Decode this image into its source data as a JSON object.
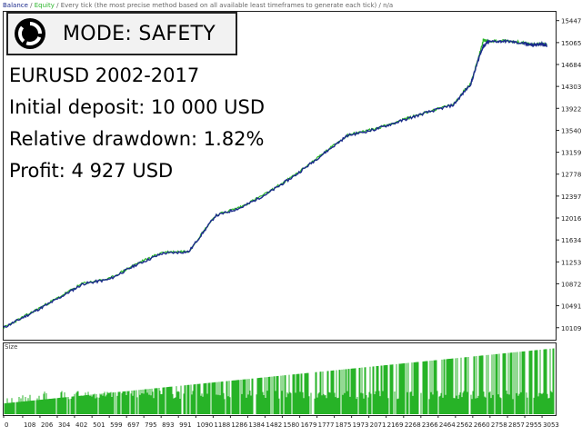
{
  "header": {
    "balance_label": "Balance",
    "equity_label": "Equity",
    "description": "Every tick (the most precise method based on all available least timeframes to generate each tick)",
    "suffix": "n/a"
  },
  "mode": {
    "text": "MODE: SAFETY",
    "icon": "circular-logo-icon"
  },
  "stats": {
    "pair_period": "EURUSD 2002-2017",
    "initial_deposit": "Initial deposit: 10 000 USD",
    "drawdown": "Relative drawdown: 1.82%",
    "profit": "Profit: 4 927 USD"
  },
  "colors": {
    "balance": "#1b2a8c",
    "equity": "#2ab52a",
    "size_bars": "#27b327",
    "axis": "#222222",
    "background": "#ffffff"
  },
  "size_panel": {
    "label": "Size"
  },
  "chart_data": {
    "type": "line",
    "title": "",
    "xlabel": "",
    "ylabel": "",
    "series": [
      {
        "name": "Balance",
        "x": [
          0,
          150,
          300,
          450,
          600,
          750,
          900,
          1050,
          1200,
          1350,
          1500,
          1650,
          1800,
          1950,
          2100,
          2250,
          2400,
          2550,
          2650,
          2700,
          2720,
          2750,
          2850,
          2950,
          3000,
          3050,
          3080
        ],
        "values": [
          10109,
          10350,
          10600,
          10870,
          10950,
          11200,
          11400,
          11430,
          12050,
          12200,
          12450,
          12750,
          13100,
          13450,
          13550,
          13700,
          13850,
          13980,
          14350,
          14850,
          15000,
          15080,
          15090,
          15050,
          15020,
          15040,
          15010
        ]
      },
      {
        "name": "Equity",
        "x": [
          0,
          150,
          300,
          450,
          600,
          750,
          900,
          1050,
          1200,
          1350,
          1500,
          1650,
          1800,
          1950,
          2100,
          2250,
          2400,
          2550,
          2650,
          2700,
          2720,
          2750,
          2850,
          2950,
          3000,
          3050,
          3080
        ],
        "values": [
          10109,
          10360,
          10615,
          10880,
          10960,
          11215,
          11420,
          11440,
          12060,
          12215,
          12460,
          12760,
          13110,
          13460,
          13560,
          13710,
          13860,
          13990,
          14370,
          14880,
          15110,
          15090,
          15100,
          15060,
          15030,
          15050,
          15020
        ]
      }
    ],
    "y_ticks": [
      10109,
      10491,
      10872,
      11253,
      11634,
      12016,
      12397,
      12778,
      13159,
      13540,
      13922,
      14303,
      14684,
      15065,
      15447
    ],
    "x_ticks": [
      0,
      108,
      206,
      304,
      402,
      501,
      599,
      697,
      795,
      893,
      991,
      1090,
      1188,
      1286,
      1384,
      1482,
      1580,
      1679,
      1777,
      1875,
      1973,
      2071,
      2169,
      2268,
      2366,
      2464,
      2562,
      2660,
      2758,
      2857,
      2955,
      3053
    ],
    "ylim": [
      9900,
      15600
    ],
    "xlim": [
      0,
      3130
    ],
    "size": {
      "label": "Size",
      "start": 0.15,
      "end": 0.92,
      "baseline_min": 0.35,
      "baseline_max": 0.55
    }
  }
}
